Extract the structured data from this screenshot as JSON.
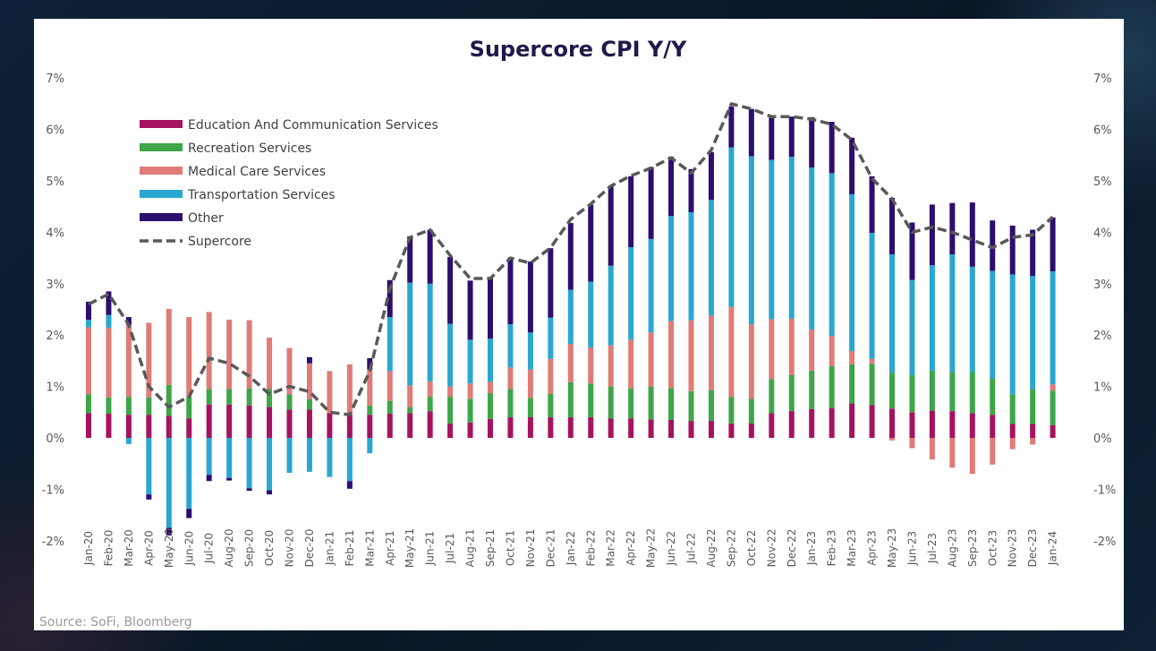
{
  "chart_data": {
    "type": "bar",
    "stacked": true,
    "title": "Supercore CPI Y/Y",
    "source": "Source: SoFi, Bloomberg",
    "ylim": [
      -2,
      7
    ],
    "yticks": [
      "-2%",
      "-1%",
      "0%",
      "1%",
      "2%",
      "3%",
      "4%",
      "5%",
      "6%",
      "7%"
    ],
    "legend_position": "top-left",
    "grid": false,
    "categories": [
      "Jan-20",
      "Feb-20",
      "Mar-20",
      "Apr-20",
      "May-20",
      "Jun-20",
      "Jul-20",
      "Aug-20",
      "Sep-20",
      "Oct-20",
      "Nov-20",
      "Dec-20",
      "Jan-21",
      "Feb-21",
      "Mar-21",
      "Apr-21",
      "May-21",
      "Jun-21",
      "Jul-21",
      "Aug-21",
      "Sep-21",
      "Oct-21",
      "Nov-21",
      "Dec-21",
      "Jan-22",
      "Feb-22",
      "Mar-22",
      "Apr-22",
      "May-22",
      "Jun-22",
      "Jul-22",
      "Aug-22",
      "Sep-22",
      "Oct-22",
      "Nov-22",
      "Dec-22",
      "Jan-23",
      "Feb-23",
      "Mar-23",
      "Apr-23",
      "May-23",
      "Jun-23",
      "Jul-23",
      "Aug-23",
      "Sep-23",
      "Oct-23",
      "Nov-23",
      "Dec-23",
      "Jan-24"
    ],
    "series": [
      {
        "name": "Education And Communication Services",
        "color": "#a5135e",
        "values": [
          0.48,
          0.47,
          0.45,
          0.45,
          0.43,
          0.38,
          0.65,
          0.65,
          0.63,
          0.6,
          0.55,
          0.55,
          0.48,
          0.45,
          0.45,
          0.47,
          0.48,
          0.52,
          0.28,
          0.3,
          0.37,
          0.4,
          0.4,
          0.4,
          0.4,
          0.4,
          0.38,
          0.38,
          0.36,
          0.35,
          0.33,
          0.33,
          0.28,
          0.28,
          0.48,
          0.52,
          0.56,
          0.58,
          0.67,
          0.64,
          0.57,
          0.5,
          0.53,
          0.52,
          0.48,
          0.45,
          0.27,
          0.27,
          0.25
        ]
      },
      {
        "name": "Recreation Services",
        "color": "#3ea548",
        "values": [
          0.37,
          0.32,
          0.35,
          0.34,
          0.6,
          0.42,
          0.3,
          0.3,
          0.33,
          0.35,
          0.3,
          0.2,
          0.0,
          0.0,
          0.18,
          0.25,
          0.12,
          0.28,
          0.52,
          0.46,
          0.5,
          0.55,
          0.38,
          0.46,
          0.68,
          0.66,
          0.62,
          0.58,
          0.64,
          0.62,
          0.58,
          0.6,
          0.52,
          0.48,
          0.66,
          0.7,
          0.75,
          0.82,
          0.76,
          0.8,
          0.7,
          0.72,
          0.78,
          0.75,
          0.8,
          0.7,
          0.58,
          0.68,
          0.67
        ]
      },
      {
        "name": "Medical Care Services",
        "color": "#e07b78",
        "values": [
          1.3,
          1.35,
          1.4,
          1.45,
          1.48,
          1.55,
          1.5,
          1.35,
          1.33,
          1.0,
          0.9,
          0.7,
          0.82,
          0.98,
          0.7,
          0.58,
          0.42,
          0.3,
          0.2,
          0.3,
          0.22,
          0.42,
          0.55,
          0.68,
          0.75,
          0.7,
          0.8,
          0.95,
          1.05,
          1.3,
          1.38,
          1.45,
          1.75,
          1.45,
          1.17,
          1.1,
          0.8,
          0.58,
          0.26,
          0.1,
          -0.05,
          -0.2,
          -0.42,
          -0.58,
          -0.7,
          -0.52,
          -0.22,
          -0.13,
          0.12
        ]
      },
      {
        "name": "Transportation Services",
        "color": "#2aa7d0",
        "values": [
          0.15,
          0.25,
          -0.12,
          -1.1,
          -1.75,
          -1.38,
          -0.72,
          -0.78,
          -0.98,
          -1.02,
          -0.68,
          -0.66,
          -0.76,
          -0.84,
          -0.3,
          1.05,
          2.0,
          1.9,
          1.22,
          0.85,
          0.84,
          0.84,
          0.72,
          0.8,
          1.05,
          1.28,
          1.55,
          1.8,
          1.82,
          2.05,
          2.1,
          2.25,
          3.1,
          3.27,
          3.1,
          3.15,
          3.15,
          3.17,
          3.05,
          2.45,
          2.3,
          1.85,
          2.05,
          2.3,
          2.05,
          2.1,
          2.33,
          2.2,
          2.2
        ]
      },
      {
        "name": "Other",
        "color": "#2c0e6e",
        "values": [
          0.35,
          0.46,
          0.15,
          -0.1,
          -0.15,
          -0.18,
          -0.12,
          -0.05,
          -0.05,
          -0.08,
          0.0,
          0.12,
          0.0,
          -0.15,
          0.22,
          0.72,
          0.9,
          1.05,
          1.3,
          1.15,
          1.2,
          1.3,
          1.38,
          1.35,
          1.3,
          1.5,
          1.55,
          1.38,
          1.4,
          1.15,
          0.84,
          0.93,
          0.8,
          0.92,
          0.82,
          0.78,
          0.98,
          1.0,
          1.1,
          1.1,
          1.1,
          1.12,
          1.18,
          1.0,
          1.25,
          0.98,
          0.95,
          0.9,
          1.05
        ]
      }
    ],
    "line": {
      "name": "Supercore",
      "color": "#595959",
      "style": "dashed",
      "values": [
        2.6,
        2.8,
        2.2,
        1.0,
        0.6,
        0.8,
        1.55,
        1.45,
        1.2,
        0.85,
        1.0,
        0.9,
        0.5,
        0.45,
        1.3,
        2.9,
        3.9,
        4.05,
        3.55,
        3.1,
        3.1,
        3.5,
        3.4,
        3.7,
        4.25,
        4.55,
        4.9,
        5.1,
        5.25,
        5.45,
        5.15,
        5.6,
        6.5,
        6.4,
        6.25,
        6.25,
        6.2,
        6.1,
        5.8,
        5.05,
        4.65,
        4.0,
        4.1,
        4.0,
        3.85,
        3.7,
        3.9,
        3.95,
        4.3
      ]
    }
  }
}
